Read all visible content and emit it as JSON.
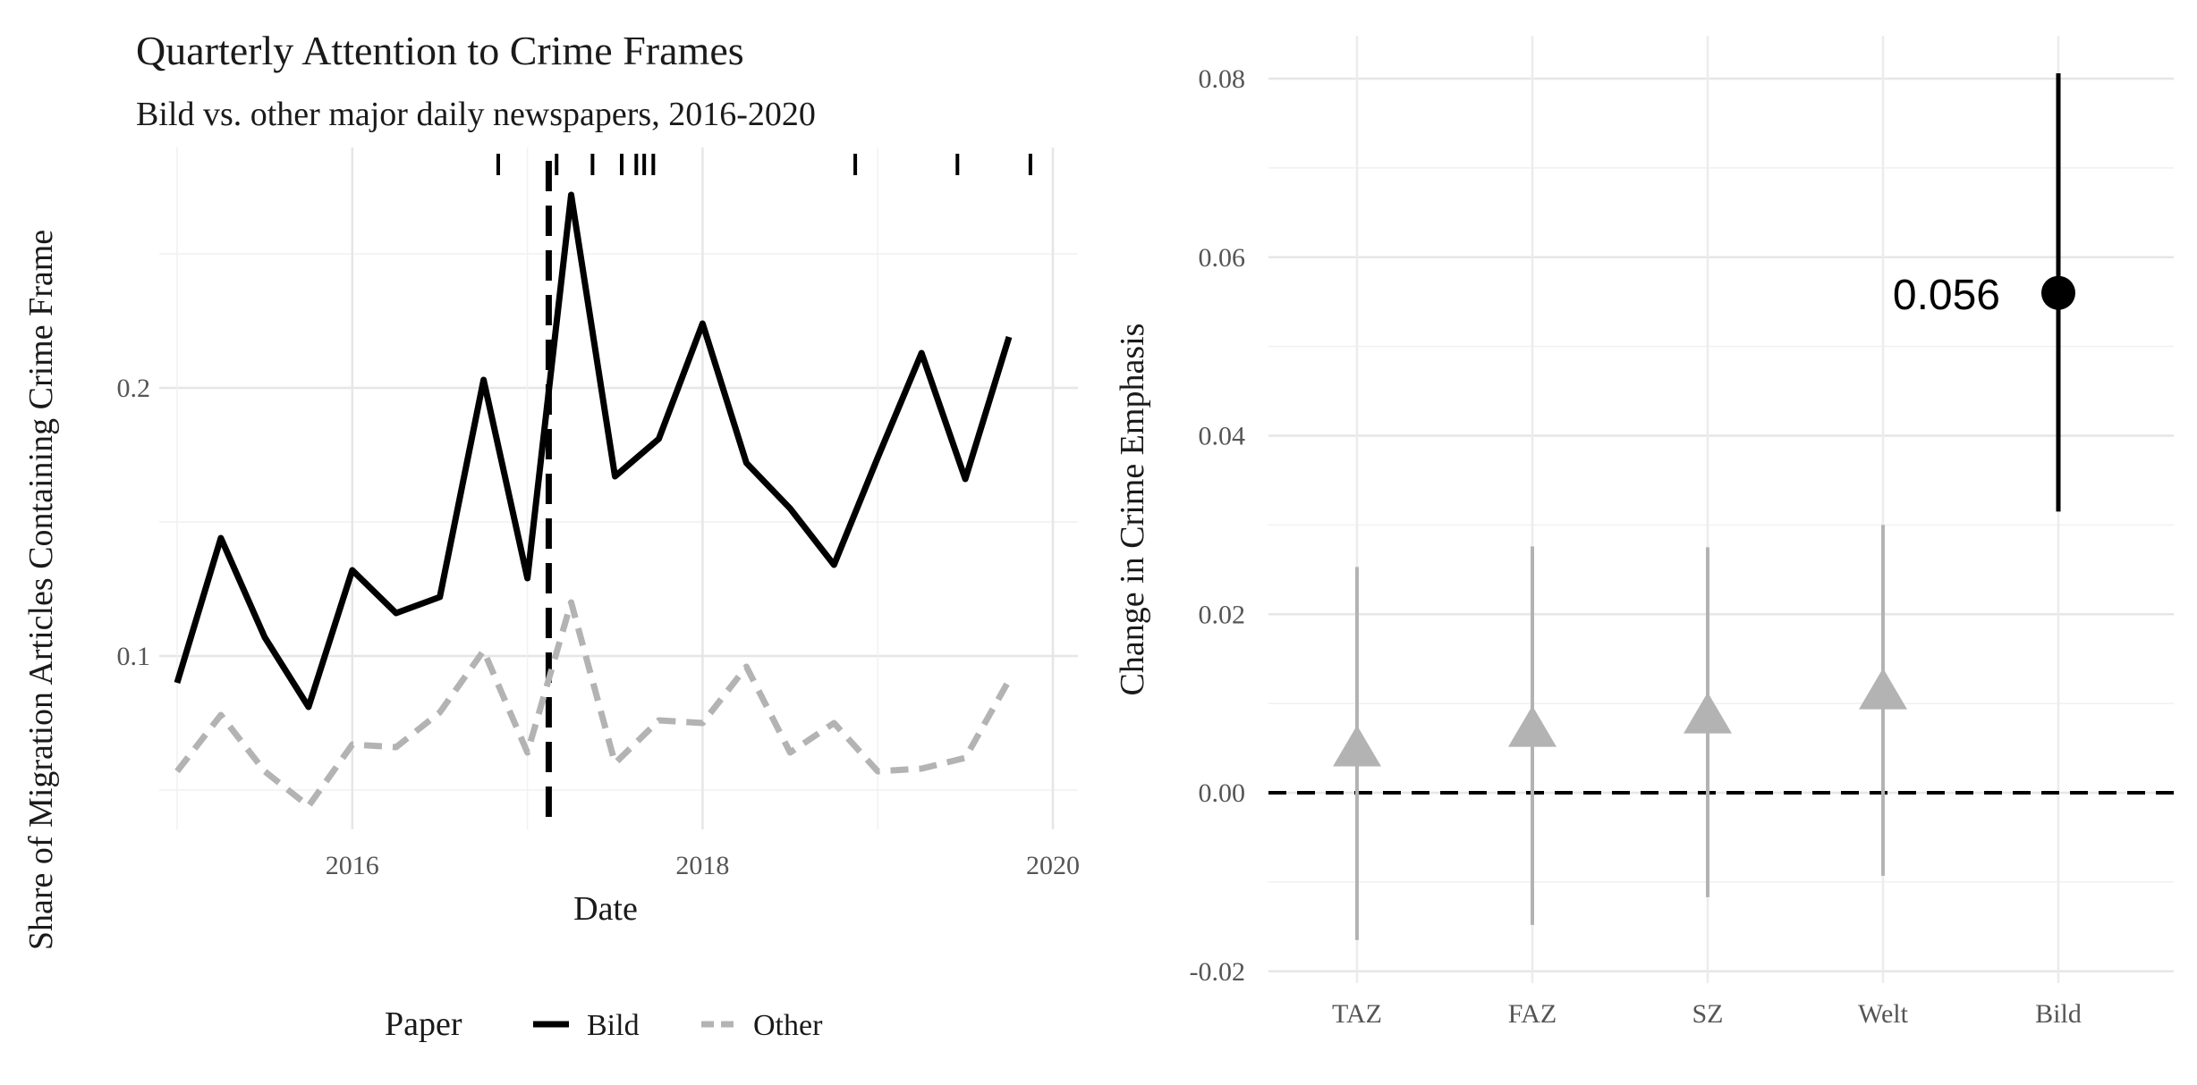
{
  "chart_data": [
    {
      "type": "line",
      "title": "Quarterly Attention to Crime Frames",
      "subtitle": "Bild vs. other major daily newspapers, 2016-2020",
      "xlabel": "Date",
      "ylabel": "Share of Migration Articles Containing Crime Frame",
      "xlim": [
        "2015-01-01",
        "2020-01-01"
      ],
      "ylim": [
        0.03,
        0.28
      ],
      "x_ticks": [
        "2016",
        "2018",
        "2020"
      ],
      "y_ticks": [
        "0.1",
        "0.2"
      ],
      "grid": true,
      "legend": {
        "title": "Paper",
        "position": "bottom",
        "entries": [
          {
            "label": "Bild",
            "style": "solid",
            "color": "#000000"
          },
          {
            "label": "Other",
            "style": "dashed",
            "color": "#b3b3b3"
          }
        ]
      },
      "x": [
        "2015-01-01",
        "2015-04-01",
        "2015-07-01",
        "2015-10-01",
        "2016-01-01",
        "2016-04-01",
        "2016-07-01",
        "2016-10-01",
        "2017-01-01",
        "2017-04-01",
        "2017-07-01",
        "2017-10-01",
        "2018-01-01",
        "2018-04-01",
        "2018-07-01",
        "2018-10-01",
        "2019-01-01",
        "2019-04-01",
        "2019-07-01",
        "2019-10-01"
      ],
      "series": [
        {
          "name": "Bild",
          "values": [
            0.09,
            0.144,
            0.107,
            0.081,
            0.132,
            0.116,
            0.122,
            0.203,
            0.129,
            0.272,
            0.167,
            0.181,
            0.224,
            0.172,
            0.155,
            0.134,
            0.174,
            0.213,
            0.166,
            0.219
          ]
        },
        {
          "name": "Other",
          "values": [
            0.057,
            0.078,
            0.057,
            0.044,
            0.067,
            0.066,
            0.079,
            0.102,
            0.064,
            0.12,
            0.06,
            0.076,
            0.075,
            0.096,
            0.064,
            0.075,
            0.057,
            0.058,
            0.062,
            0.091
          ]
        }
      ],
      "annotations": {
        "vertical_dashed_line": "2017-02-15",
        "rug_marks": [
          "2016-11-01",
          "2017-03-01",
          "2017-05-15",
          "2017-07-15",
          "2017-08-15",
          "2017-09-01",
          "2017-09-20",
          "2018-11-15",
          "2019-06-15",
          "2019-11-15"
        ]
      }
    },
    {
      "type": "scatter",
      "subtype": "point-range",
      "xlabel": "",
      "ylabel": "Change in Crime Emphasis",
      "categories": [
        "TAZ",
        "FAZ",
        "SZ",
        "Welt",
        "Bild"
      ],
      "ylim": [
        -0.022,
        0.083
      ],
      "y_ticks": [
        "-0.02",
        "0.00",
        "0.02",
        "0.04",
        "0.06",
        "0.08"
      ],
      "grid": true,
      "reference_line": 0,
      "series": [
        {
          "values": [
            0.0047,
            0.0069,
            0.0084,
            0.0111,
            0.056
          ],
          "lower": [
            -0.0165,
            -0.0148,
            -0.0117,
            -0.0093,
            0.0315
          ],
          "upper": [
            0.0253,
            0.0276,
            0.0275,
            0.03,
            0.0806
          ],
          "shapes": [
            "triangle",
            "triangle",
            "triangle",
            "triangle",
            "circle"
          ],
          "colors": [
            "#b3b3b3",
            "#b3b3b3",
            "#b3b3b3",
            "#b3b3b3",
            "#000000"
          ]
        }
      ],
      "data_labels": [
        {
          "category": "Bild",
          "text": "0.056"
        }
      ]
    }
  ]
}
